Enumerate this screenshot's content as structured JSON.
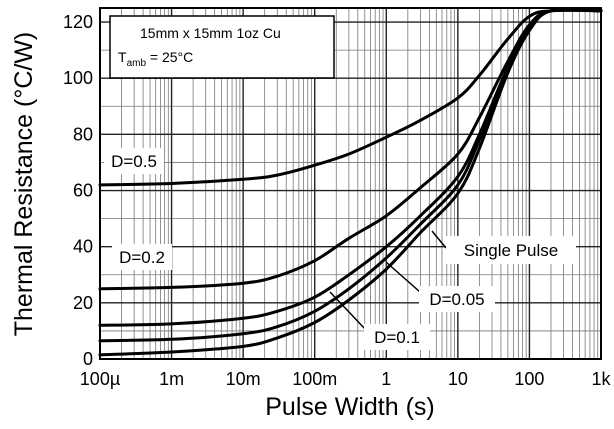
{
  "chart_data": {
    "type": "line",
    "xlabel": "Pulse Width (s)",
    "ylabel": "Thermal Resistance (°C/W)",
    "xscale": "log",
    "xlim": [
      0.0001,
      1000
    ],
    "ylim": [
      0,
      125
    ],
    "grid": true,
    "x_ticks": [
      {
        "value": 0.0001,
        "label": "100µ"
      },
      {
        "value": 0.001,
        "label": "1m"
      },
      {
        "value": 0.01,
        "label": "10m"
      },
      {
        "value": 0.1,
        "label": "100m"
      },
      {
        "value": 1,
        "label": "1"
      },
      {
        "value": 10,
        "label": "10"
      },
      {
        "value": 100,
        "label": "100"
      },
      {
        "value": 1000,
        "label": "1k"
      }
    ],
    "y_ticks": [
      {
        "value": 0,
        "label": "0"
      },
      {
        "value": 20,
        "label": "20"
      },
      {
        "value": 40,
        "label": "40"
      },
      {
        "value": 60,
        "label": "60"
      },
      {
        "value": 80,
        "label": "80"
      },
      {
        "value": 100,
        "label": "100"
      },
      {
        "value": 120,
        "label": "120"
      }
    ],
    "conditions": {
      "line1": "15mm x 15mm 1oz Cu",
      "line2_prefix": "T",
      "line2_sub": "amb",
      "line2_suffix": " = 25°C"
    },
    "series": [
      {
        "name": "D=0.5",
        "x": [
          0.0001,
          0.001,
          0.01,
          0.03,
          0.1,
          0.3,
          1,
          3,
          10,
          20,
          50,
          100,
          200,
          1000
        ],
        "y": [
          62,
          62.5,
          64,
          65.5,
          69,
          73,
          79,
          85,
          93,
          101,
          114,
          122,
          124,
          124
        ]
      },
      {
        "name": "D=0.2",
        "x": [
          0.0001,
          0.001,
          0.01,
          0.03,
          0.1,
          0.3,
          1,
          3,
          10,
          20,
          50,
          100,
          200,
          1000
        ],
        "y": [
          25,
          25.5,
          27,
          29.5,
          35,
          43,
          51,
          61,
          73,
          86,
          106,
          119,
          124,
          124
        ]
      },
      {
        "name": "Single Pulse",
        "x": [
          0.0001,
          0.001,
          0.01,
          0.03,
          0.1,
          0.3,
          1,
          3,
          10,
          20,
          50,
          100,
          200,
          1000
        ],
        "y": [
          12,
          12.5,
          14.5,
          17,
          22,
          30,
          40,
          51,
          65,
          80,
          104,
          118,
          124,
          124
        ]
      },
      {
        "name": "D=0.05",
        "x": [
          0.0001,
          0.001,
          0.01,
          0.03,
          0.1,
          0.3,
          1,
          3,
          10,
          20,
          50,
          100,
          200,
          1000
        ],
        "y": [
          6.5,
          7,
          9,
          11.5,
          17,
          25,
          36,
          48,
          62,
          78,
          103,
          118,
          124,
          124
        ]
      },
      {
        "name": "D=0.1",
        "x": [
          0.0001,
          0.001,
          0.01,
          0.03,
          0.1,
          0.3,
          1,
          3,
          10,
          20,
          50,
          100,
          200,
          1000
        ],
        "y": [
          1.5,
          2.5,
          4.5,
          7.5,
          13,
          21,
          32,
          45,
          59,
          75,
          102,
          117,
          124,
          124
        ]
      }
    ],
    "annotations": [
      {
        "text": "D=0.5",
        "series": "D=0.5"
      },
      {
        "text": "D=0.2",
        "series": "D=0.2"
      },
      {
        "text": "Single Pulse",
        "series": "Single Pulse"
      },
      {
        "text": "D=0.05",
        "series": "D=0.05"
      },
      {
        "text": "D=0.1",
        "series": "D=0.1"
      }
    ]
  }
}
